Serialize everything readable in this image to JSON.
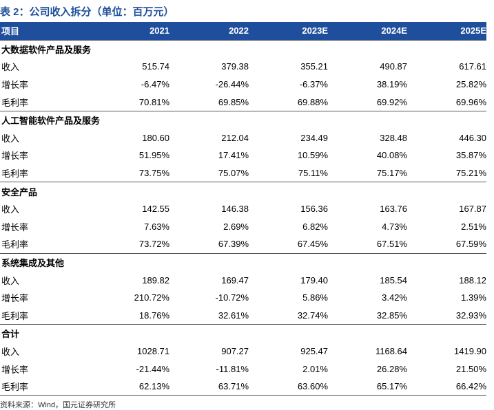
{
  "title": "表 2：公司收入拆分（单位：百万元）",
  "table": {
    "header": [
      "项目",
      "2021",
      "2022",
      "2023E",
      "2024E",
      "2025E"
    ],
    "sections": [
      {
        "name": "大数据软件产品及服务",
        "rows": [
          [
            "收入",
            "515.74",
            "379.38",
            "355.21",
            "490.87",
            "617.61"
          ],
          [
            "增长率",
            "-6.47%",
            "-26.44%",
            "-6.37%",
            "38.19%",
            "25.82%"
          ],
          [
            "毛利率",
            "70.81%",
            "69.85%",
            "69.88%",
            "69.92%",
            "69.96%"
          ]
        ]
      },
      {
        "name": "人工智能软件产品及服务",
        "rows": [
          [
            "收入",
            "180.60",
            "212.04",
            "234.49",
            "328.48",
            "446.30"
          ],
          [
            "增长率",
            "51.95%",
            "17.41%",
            "10.59%",
            "40.08%",
            "35.87%"
          ],
          [
            "毛利率",
            "73.75%",
            "75.07%",
            "75.11%",
            "75.17%",
            "75.21%"
          ]
        ]
      },
      {
        "name": "安全产品",
        "rows": [
          [
            "收入",
            "142.55",
            "146.38",
            "156.36",
            "163.76",
            "167.87"
          ],
          [
            "增长率",
            "7.63%",
            "2.69%",
            "6.82%",
            "4.73%",
            "2.51%"
          ],
          [
            "毛利率",
            "73.72%",
            "67.39%",
            "67.45%",
            "67.51%",
            "67.59%"
          ]
        ]
      },
      {
        "name": "系统集成及其他",
        "rows": [
          [
            "收入",
            "189.82",
            "169.47",
            "179.40",
            "185.54",
            "188.12"
          ],
          [
            "增长率",
            "210.72%",
            "-10.72%",
            "5.86%",
            "3.42%",
            "1.39%"
          ],
          [
            "毛利率",
            "18.76%",
            "32.61%",
            "32.74%",
            "32.85%",
            "32.93%"
          ]
        ]
      },
      {
        "name": "合计",
        "rows": [
          [
            "收入",
            "1028.71",
            "907.27",
            "925.47",
            "1168.64",
            "1419.90"
          ],
          [
            "增长率",
            "-21.44%",
            "-11.81%",
            "2.01%",
            "26.28%",
            "21.50%"
          ],
          [
            "毛利率",
            "62.13%",
            "63.71%",
            "63.60%",
            "65.17%",
            "66.42%"
          ]
        ]
      }
    ]
  },
  "source": "资料来源：Wind，国元证券研究所"
}
